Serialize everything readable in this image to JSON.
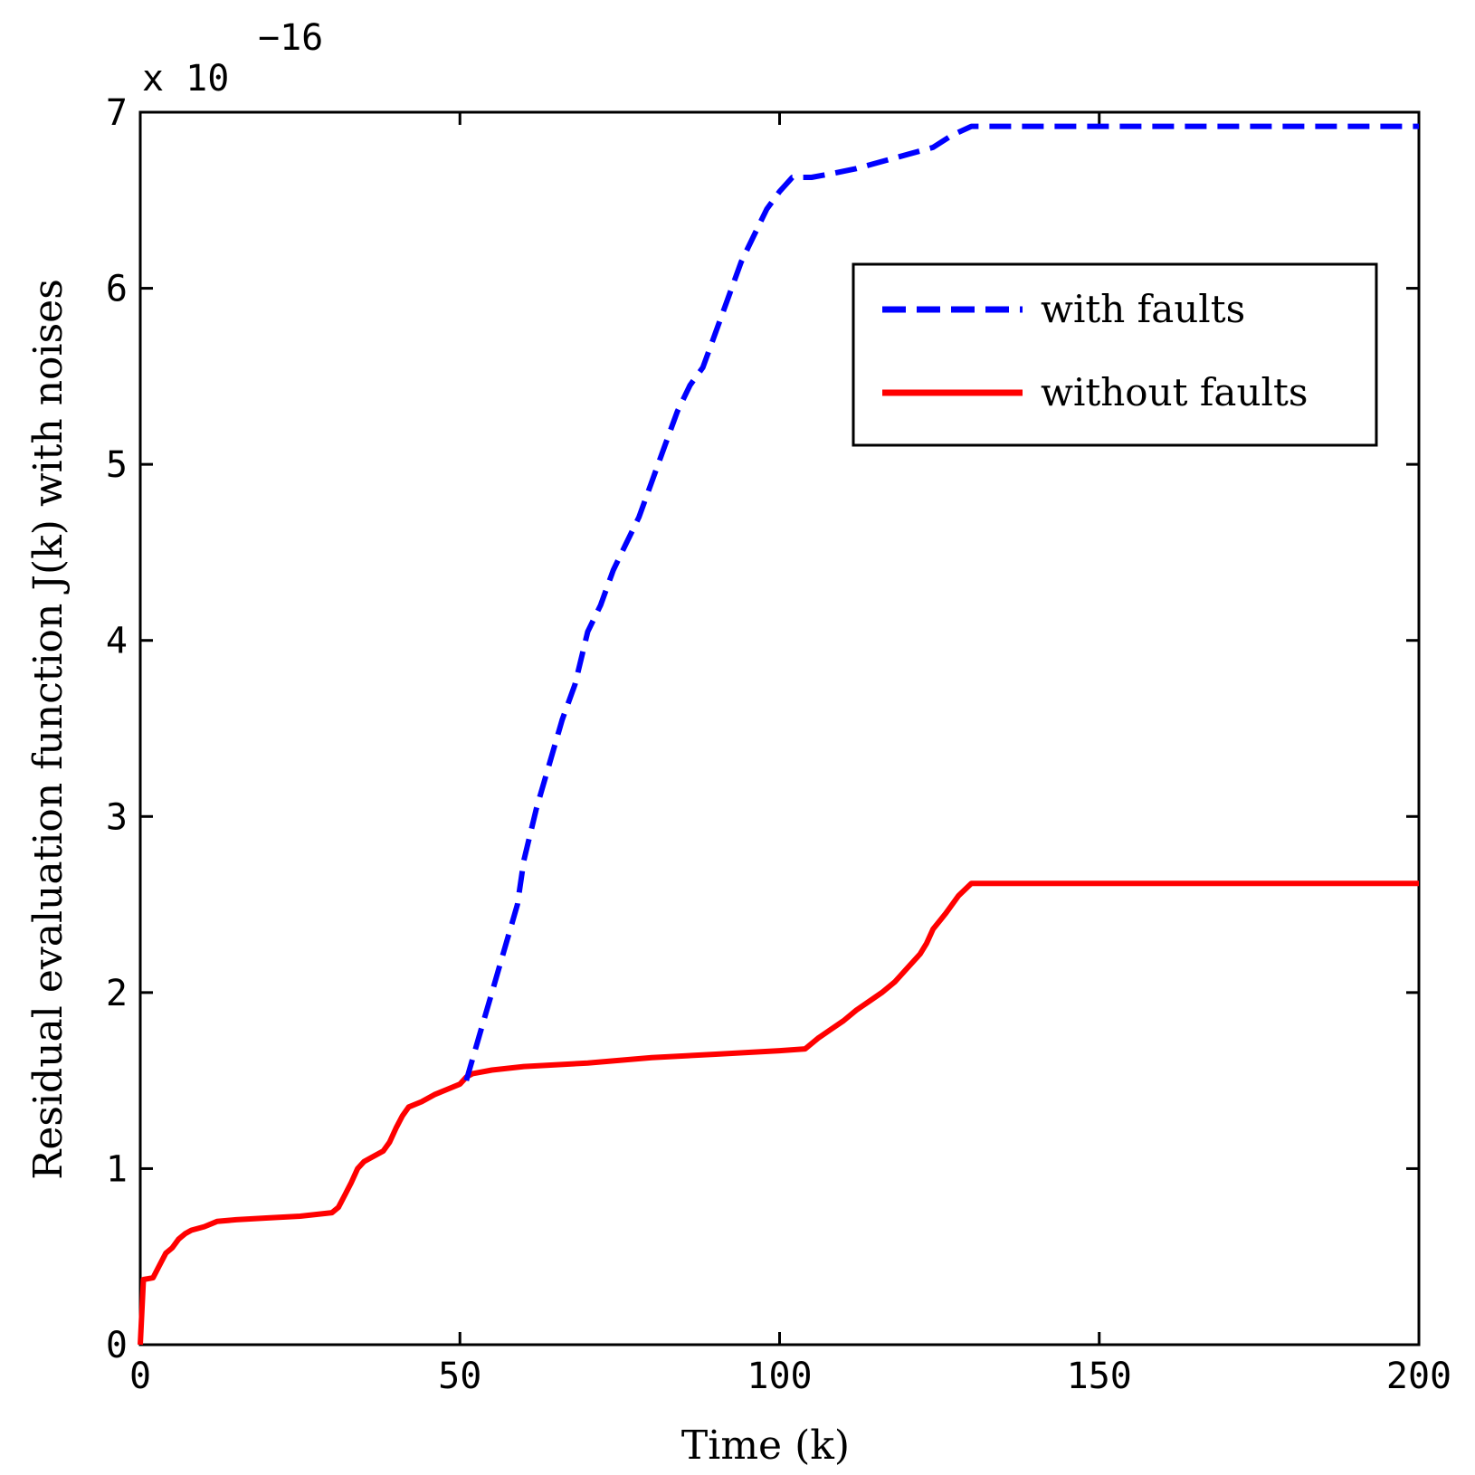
{
  "chart_data": {
    "type": "line",
    "xlabel": "Time (k)",
    "ylabel": "Residual evaluation function J(k) with noises",
    "y_scale_label": {
      "prefix": "x 10",
      "exponent": "−16"
    },
    "xlim": [
      0,
      200
    ],
    "ylim": [
      0,
      7
    ],
    "x_ticks": [
      "0",
      "50",
      "100",
      "150",
      "200"
    ],
    "y_ticks": [
      "0",
      "1",
      "2",
      "3",
      "4",
      "5",
      "6",
      "7"
    ],
    "grid": false,
    "legend_position": "top-right",
    "series": [
      {
        "name": "with faults",
        "color": "#0000ff",
        "style": "dashed",
        "x": [
          51,
          53,
          55,
          57,
          59,
          60,
          62,
          64,
          66,
          68,
          70,
          72,
          74,
          76,
          78,
          80,
          82,
          84,
          86,
          88,
          90,
          92,
          94,
          96,
          98,
          100,
          102,
          105,
          108,
          112,
          116,
          120,
          124,
          127,
          130,
          150,
          200
        ],
        "y": [
          1.5,
          1.75,
          2.0,
          2.25,
          2.5,
          2.75,
          3.05,
          3.3,
          3.55,
          3.75,
          4.05,
          4.2,
          4.4,
          4.55,
          4.7,
          4.9,
          5.1,
          5.3,
          5.45,
          5.55,
          5.75,
          5.95,
          6.15,
          6.3,
          6.45,
          6.55,
          6.63,
          6.63,
          6.65,
          6.68,
          6.72,
          6.76,
          6.8,
          6.87,
          6.92,
          6.92,
          6.92
        ]
      },
      {
        "name": "without faults",
        "color": "#ff0000",
        "style": "solid",
        "x": [
          0,
          0.5,
          2,
          3,
          4,
          5,
          6,
          7,
          8,
          10,
          12,
          15,
          20,
          25,
          30,
          31,
          32,
          33,
          34,
          35,
          36,
          38,
          39,
          40,
          41,
          42,
          44,
          46,
          48,
          50,
          51,
          52,
          55,
          60,
          70,
          80,
          90,
          100,
          104,
          106,
          108,
          110,
          112,
          114,
          116,
          118,
          120,
          122,
          123,
          124,
          126,
          128,
          130,
          150,
          200
        ],
        "y": [
          0,
          0.37,
          0.38,
          0.45,
          0.52,
          0.55,
          0.6,
          0.63,
          0.65,
          0.67,
          0.7,
          0.71,
          0.72,
          0.73,
          0.75,
          0.78,
          0.85,
          0.92,
          1.0,
          1.04,
          1.06,
          1.1,
          1.15,
          1.23,
          1.3,
          1.35,
          1.38,
          1.42,
          1.45,
          1.48,
          1.52,
          1.54,
          1.56,
          1.58,
          1.6,
          1.63,
          1.65,
          1.67,
          1.68,
          1.74,
          1.79,
          1.84,
          1.9,
          1.95,
          2.0,
          2.06,
          2.14,
          2.22,
          2.28,
          2.36,
          2.45,
          2.55,
          2.62,
          2.62,
          2.62
        ]
      }
    ]
  }
}
